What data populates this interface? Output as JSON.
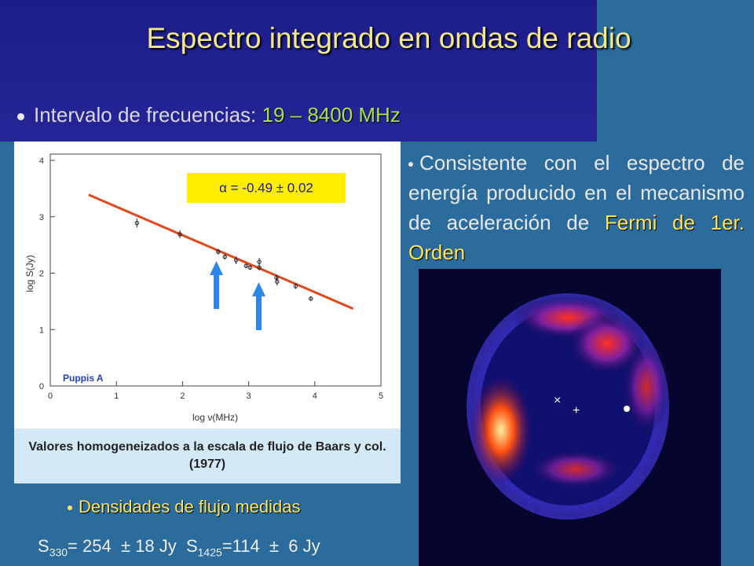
{
  "title": "Espectro integrado en ondas de radio",
  "bullet_1": {
    "label": "Intervalo de frecuencias: ",
    "range": "19 – 8400 MHz"
  },
  "bullet_2": {
    "text": "Consistente con el espectro de energía producido en el mecanismo de aceleración de",
    "highlight": "Fermi de 1er. Orden"
  },
  "caption": "Valores homogeneizados a la escala de flujo de Baars y col. (1977)",
  "bullet_3": "Densidades de flujo medidas",
  "flux": [
    {
      "symbol": "S",
      "sub": "330",
      "text": "= 254  ± 18 Jy"
    },
    {
      "symbol": "S",
      "sub": "1425",
      "text": "=114  ±  6 Jy"
    }
  ],
  "chart_data": {
    "type": "scatter",
    "xlabel": "log ν(MHz)",
    "ylabel": "log S(Jy)",
    "annotation": "α = -0.49 ± 0.02",
    "source_label": "Puppis A",
    "x": [
      1.31,
      1.96,
      2.54,
      2.64,
      2.81,
      2.96,
      3.02,
      3.16,
      3.16,
      3.42,
      3.43,
      3.71,
      3.94
    ],
    "series": [
      {
        "color": "#222222",
        "values": [
          2.89,
          2.69,
          2.38,
          2.29,
          2.23,
          2.13,
          2.1,
          2.2,
          2.1,
          1.92,
          1.85,
          1.77,
          1.55
        ],
        "errors": [
          0.08,
          0.07,
          0.05,
          0.05,
          0.07,
          0.04,
          0.04,
          0.07,
          0.05,
          0.05,
          0.07,
          0.05,
          0.04
        ]
      }
    ],
    "fit": {
      "x": [
        0.58,
        4.58
      ],
      "values": [
        3.39,
        1.37
      ],
      "color": "#e04a1c"
    },
    "xlim": [
      0,
      5
    ],
    "xticks": [
      0,
      1,
      2,
      3,
      4,
      5
    ],
    "ylim": [
      0,
      4
    ],
    "yticks": [
      0,
      1,
      2,
      3,
      4
    ]
  }
}
